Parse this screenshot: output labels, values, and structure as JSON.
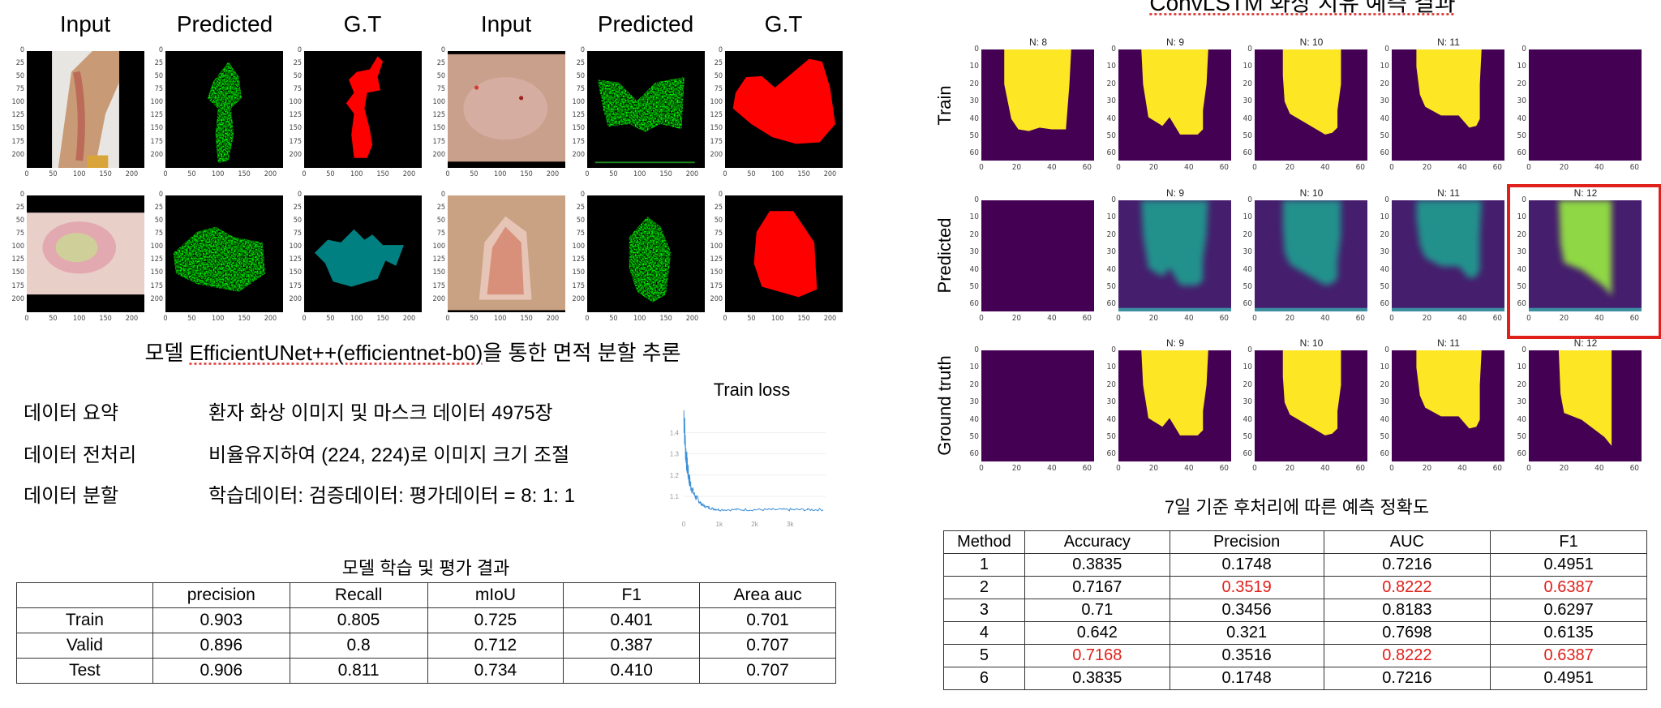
{
  "left": {
    "column_headers": [
      "Input",
      "Predicted",
      "G.T",
      "Input",
      "Predicted",
      "G.T"
    ],
    "subtitle_prefix": "모델 ",
    "subtitle_model": "EfficientUNet++(efficientnet-b0)",
    "subtitle_suffix": "을 통한 면적 분할 추론",
    "info": [
      {
        "label": "데이터 요약",
        "value": "환자 화상 이미지 및 마스크 데이터 4975장"
      },
      {
        "label": "데이터 전처리",
        "value": "비율유지하여 (224, 224)로 이미지 크기 조절"
      },
      {
        "label": "데이터 분할",
        "value": "학습데이터: 검증데이터: 평가데이터 = 8: 1: 1"
      }
    ],
    "seg_ticks_y": [
      "0",
      "25",
      "50",
      "75",
      "100",
      "125",
      "150",
      "175",
      "200"
    ],
    "seg_ticks_x": [
      "0",
      "50",
      "100",
      "150",
      "200"
    ],
    "table_title": "모델 학습 및 평가 결과",
    "table": {
      "headers": [
        "",
        "precision",
        "Recall",
        "mIoU",
        "F1",
        "Area auc"
      ],
      "rows": [
        [
          "Train",
          "0.903",
          "0.805",
          "0.725",
          "0.401",
          "0.701"
        ],
        [
          "Valid",
          "0.896",
          "0.8",
          "0.712",
          "0.387",
          "0.707"
        ],
        [
          "Test",
          "0.906",
          "0.811",
          "0.734",
          "0.410",
          "0.707"
        ]
      ]
    }
  },
  "chart_data": {
    "type": "line",
    "title": "Train loss",
    "xlabel": "",
    "ylabel": "",
    "x_ticks": [
      "0",
      "1k",
      "2k",
      "3k"
    ],
    "y_ticks": [
      "1.1",
      "1.2",
      "1.3",
      "1.4"
    ],
    "xlim": [
      0,
      4000
    ],
    "ylim": [
      1.02,
      1.47
    ],
    "series": [
      {
        "name": "train loss",
        "color": "#3b8fd9",
        "x": [
          0,
          50,
          100,
          150,
          200,
          300,
          400,
          500,
          600,
          800,
          1000,
          1500,
          2000,
          2500,
          3000,
          3500,
          3950
        ],
        "y": [
          1.46,
          1.3,
          1.22,
          1.17,
          1.14,
          1.1,
          1.08,
          1.06,
          1.05,
          1.04,
          1.035,
          1.035,
          1.035,
          1.035,
          1.035,
          1.035,
          1.035
        ]
      }
    ]
  },
  "right": {
    "title": "ConvLSTM 화상 치유 예측 결과",
    "row_labels": [
      "Train",
      "Predicted",
      "Ground truth"
    ],
    "row_titles": [
      [
        "N: 8",
        "N: 9",
        "N: 10",
        "N: 11",
        ""
      ],
      [
        "",
        "N: 9",
        "N: 10",
        "N: 11",
        "N: 12"
      ],
      [
        "",
        "N: 9",
        "N: 10",
        "N: 11",
        "N: 12"
      ]
    ],
    "conv_ticks_y": [
      "0",
      "10",
      "20",
      "30",
      "40",
      "50",
      "60"
    ],
    "conv_ticks_x": [
      "0",
      "20",
      "40",
      "60"
    ],
    "highlight_color": "#e0201a",
    "table_title": "7일 기준 후처리에 따른 예측 정확도",
    "table": {
      "headers": [
        "Method",
        "Accuracy",
        "Precision",
        "AUC",
        "F1"
      ],
      "rows": [
        [
          "1",
          "0.3835",
          "0.1748",
          "0.7216",
          "0.4951"
        ],
        [
          "2",
          "0.7167",
          "0.3519",
          "0.8222",
          "0.6387"
        ],
        [
          "3",
          "0.71",
          "0.3456",
          "0.8183",
          "0.6297"
        ],
        [
          "4",
          "0.642",
          "0.321",
          "0.7698",
          "0.6135"
        ],
        [
          "5",
          "0.7168",
          "0.3516",
          "0.8222",
          "0.6387"
        ],
        [
          "6",
          "0.3835",
          "0.1748",
          "0.7216",
          "0.4951"
        ]
      ],
      "highlighted_cells": [
        [
          1,
          2
        ],
        [
          1,
          3
        ],
        [
          1,
          4
        ],
        [
          4,
          1
        ],
        [
          4,
          3
        ],
        [
          4,
          4
        ]
      ]
    }
  }
}
